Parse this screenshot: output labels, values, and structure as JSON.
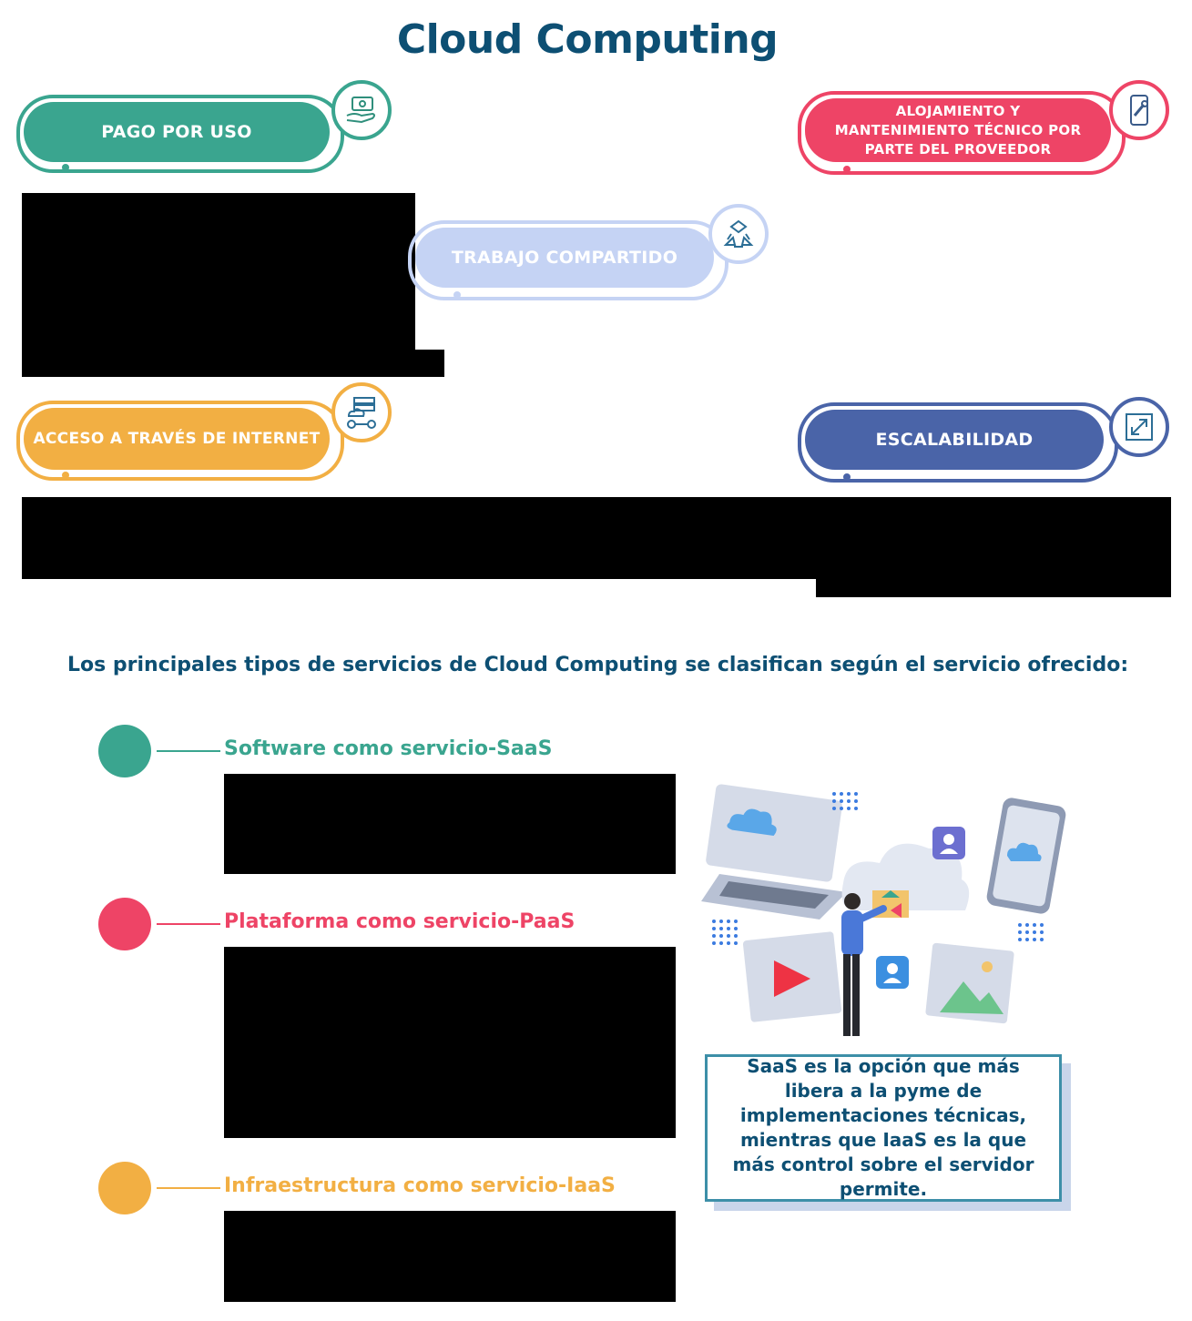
{
  "title": "Cloud Computing",
  "features": [
    {
      "label": "PAGO POR USO",
      "color": "#3aa58f",
      "icon": "hand-money-icon"
    },
    {
      "label": "ALOJAMIENTO Y MANTENIMIENTO TÉCNICO POR PARTE DEL PROVEEDOR",
      "color": "#ee4466",
      "icon": "mobile-wrench-icon"
    },
    {
      "label": "TRABAJO COMPARTIDO",
      "color": "#c5d3f4",
      "icon": "share-network-icon"
    },
    {
      "label": "ACCESO A TRAVÉS DE INTERNET",
      "color": "#f2af43",
      "icon": "cloud-server-users-icon"
    },
    {
      "label": "ESCALABILIDAD",
      "color": "#4a64a8",
      "icon": "expand-arrows-icon"
    }
  ],
  "subtitle": "Los principales tipos de servicios de Cloud Computing se clasifican según el servicio ofrecido:",
  "services": [
    {
      "title": "Software como servicio-SaaS",
      "color": "#3aa58f"
    },
    {
      "title": "Plataforma como servicio-PaaS",
      "color": "#ee4466"
    },
    {
      "title": "Infraestructura como servicio-IaaS",
      "color": "#f2af43"
    }
  ],
  "callout": "SaaS es la opción que más libera a la pyme de implementaciones técnicas, mientras que IaaS es la que más control sobre el servidor permite."
}
